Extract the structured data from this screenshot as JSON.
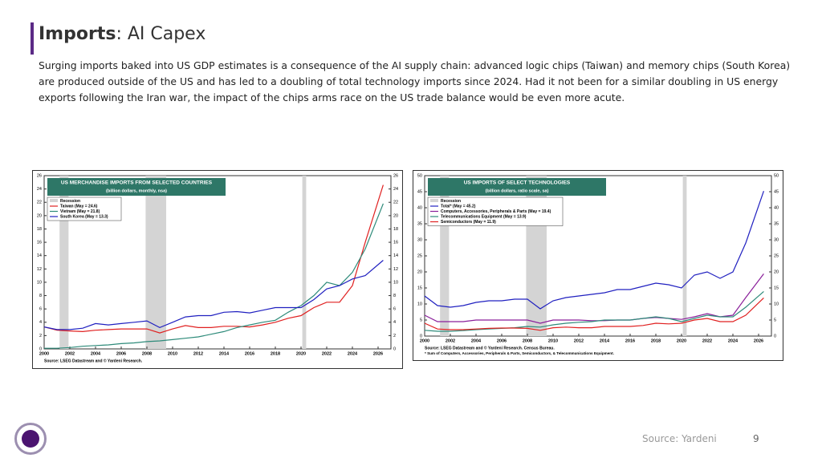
{
  "slide": {
    "title_bold": "Imports",
    "title_rest": ": AI Capex",
    "body": "Surging imports baked into US GDP estimates is a consequence of the AI supply chain: advanced logic chips (Taiwan) and memory chips (South Korea) are produced outside of the US and has led to a doubling of total technology imports since 2024. Had it not been for a similar doubling in US energy exports following the Iran war, the impact of the chips arms race on the US trade balance would be even more acute.",
    "source": "Source: Yardeni",
    "page": "9"
  },
  "chart_data": [
    {
      "type": "line",
      "title": "US MERCHANDISE IMPORTS FROM SELECTED COUNTRIES",
      "subtitle": "(billion dollars, monthly, nsa)",
      "recession_label": "Recession",
      "recessions": [
        [
          2001.2,
          2001.9
        ],
        [
          2007.9,
          2009.5
        ],
        [
          2020.1,
          2020.4
        ]
      ],
      "x": [
        2000,
        2001,
        2002,
        2003,
        2004,
        2005,
        2006,
        2007,
        2008,
        2009,
        2010,
        2011,
        2012,
        2013,
        2014,
        2015,
        2016,
        2017,
        2018,
        2019,
        2020,
        2021,
        2022,
        2023,
        2024,
        2025,
        2026.4
      ],
      "series": [
        {
          "name": "Taiwan (May = 24.6)",
          "color": "#e02020",
          "values": [
            3.3,
            2.8,
            2.7,
            2.6,
            2.8,
            2.9,
            3.0,
            3.0,
            3.0,
            2.4,
            3.0,
            3.5,
            3.2,
            3.2,
            3.4,
            3.4,
            3.3,
            3.6,
            4.0,
            4.6,
            5.0,
            6.2,
            7.0,
            7.0,
            9.5,
            16,
            24.6
          ]
        },
        {
          "name": "Vietnam (May = 21.8)",
          "color": "#2e8b7a",
          "values": [
            0.1,
            0.1,
            0.2,
            0.4,
            0.5,
            0.6,
            0.8,
            0.9,
            1.1,
            1.2,
            1.4,
            1.6,
            1.8,
            2.2,
            2.6,
            3.2,
            3.6,
            4.0,
            4.3,
            5.5,
            6.5,
            8.0,
            10.0,
            9.5,
            11.5,
            15.0,
            21.8
          ]
        },
        {
          "name": "South Korea (May = 13.3)",
          "color": "#2020c0",
          "values": [
            3.3,
            2.9,
            2.9,
            3.1,
            3.8,
            3.6,
            3.8,
            4.0,
            4.2,
            3.2,
            4.0,
            4.8,
            5.0,
            5.0,
            5.5,
            5.6,
            5.4,
            5.8,
            6.2,
            6.2,
            6.2,
            7.4,
            9.0,
            9.5,
            10.5,
            11.0,
            13.3
          ]
        }
      ],
      "xlim": [
        2000,
        2027
      ],
      "xticks": [
        2000,
        2002,
        2004,
        2006,
        2008,
        2010,
        2012,
        2014,
        2016,
        2018,
        2020,
        2022,
        2024,
        2026
      ],
      "ylim": [
        0,
        26
      ],
      "yticks": [
        0,
        2,
        4,
        6,
        8,
        10,
        12,
        14,
        16,
        18,
        20,
        22,
        24,
        26
      ],
      "source": "Source: LSEG Datastream and © Yardeni Research."
    },
    {
      "type": "line",
      "title": "US IMPORTS OF SELECT TECHNOLOGIES",
      "subtitle": "(billion dollars, ratio scale, sa)",
      "recession_label": "Recession",
      "recessions": [
        [
          2001.2,
          2001.9
        ],
        [
          2007.9,
          2009.5
        ],
        [
          2020.1,
          2020.4
        ]
      ],
      "x": [
        2000,
        2001,
        2002,
        2003,
        2004,
        2005,
        2006,
        2007,
        2008,
        2009,
        2010,
        2011,
        2012,
        2013,
        2014,
        2015,
        2016,
        2017,
        2018,
        2019,
        2020,
        2021,
        2022,
        2023,
        2024,
        2025,
        2026.4
      ],
      "series": [
        {
          "name": "Total* (May = 45.2)",
          "color": "#2020c0",
          "values": [
            12.5,
            9.5,
            9,
            9.5,
            10.5,
            11,
            11,
            11.5,
            11.5,
            8.5,
            11,
            12,
            12.5,
            13,
            13.5,
            14.5,
            14.5,
            15.5,
            16.5,
            16,
            15,
            19,
            20,
            18,
            20,
            29,
            45.2
          ]
        },
        {
          "name": "Computers, Accessories, Peripherals & Parts (May = 19.4)",
          "color": "#8a1f9a",
          "values": [
            6.5,
            4.5,
            4.5,
            4.5,
            5,
            5,
            5,
            5,
            5,
            4,
            5,
            5,
            5,
            4.8,
            4.8,
            5,
            5,
            5.5,
            5.8,
            5.5,
            5.2,
            6,
            7,
            6,
            6.5,
            12,
            19.4
          ]
        },
        {
          "name": "Telecommunications Equipment (May = 13.9)",
          "color": "#2e8b7a",
          "values": [
            1.8,
            1.5,
            1.5,
            1.7,
            2,
            2.2,
            2.4,
            2.6,
            3,
            2.8,
            3.5,
            4,
            4.3,
            4.5,
            5,
            5,
            5,
            5.5,
            6,
            5.5,
            4.5,
            5.5,
            6.5,
            6,
            6,
            9,
            13.9
          ]
        },
        {
          "name": "Semiconductors (May = 11.9)",
          "color": "#e02020",
          "values": [
            4,
            2.2,
            2,
            2,
            2.2,
            2.4,
            2.5,
            2.5,
            2.4,
            1.8,
            2.6,
            2.8,
            2.6,
            2.6,
            3,
            3,
            3,
            3.3,
            4,
            3.8,
            4,
            5,
            5.5,
            4.5,
            4.5,
            6.5,
            11.9
          ]
        }
      ],
      "xlim": [
        2000,
        2027
      ],
      "xticks": [
        2000,
        2002,
        2004,
        2006,
        2008,
        2010,
        2012,
        2014,
        2016,
        2018,
        2020,
        2022,
        2024,
        2026
      ],
      "ylim": [
        0,
        50
      ],
      "yticks": [
        0,
        5,
        10,
        15,
        20,
        25,
        30,
        35,
        40,
        45,
        50
      ],
      "source": "Source: LSEG Datastream and © Yardeni Research. Census Bureau.",
      "note": "* Sum of Computers, Accessories, Peripherals & Parts, Semiconductors, & Telecommunications Equipment."
    }
  ]
}
